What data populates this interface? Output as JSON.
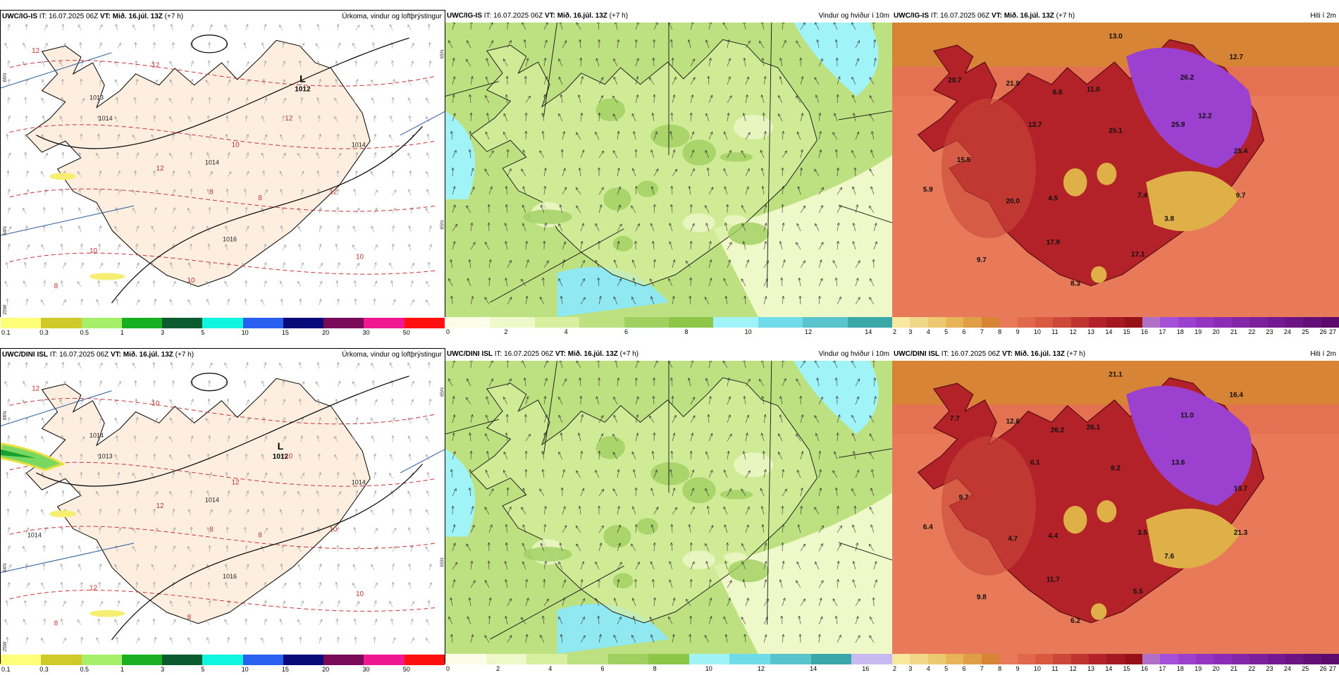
{
  "colors": {
    "land_pale": "#fdeee0",
    "sea_white": "#ffffff",
    "isobar": "#000000",
    "temp_contour": "#c8323c",
    "graticule": "#2a5a9a"
  },
  "scale_precip": {
    "colors": [
      "#ffff7a",
      "#cfc92a",
      "#a6ef6a",
      "#18b020",
      "#0a5c30",
      "#10f5e0",
      "#2a60f0",
      "#0a0a7a",
      "#7a0a5a",
      "#f01890",
      "#ff1010"
    ],
    "labels": [
      "0.1",
      "0.3",
      "0.5",
      "1",
      "3",
      "5",
      "10",
      "15",
      "20",
      "30",
      "50"
    ]
  },
  "scale_wind_top": {
    "colors": [
      "#fbfde8",
      "#eef8c8",
      "#d9efa0",
      "#bde080",
      "#9fd060",
      "#8ec64a",
      "#a0f4f8",
      "#70dcea",
      "#5ac4cc",
      "#3aa8a8"
    ],
    "labels": [
      "0",
      "2",
      "4",
      "6",
      "8",
      "10",
      "12",
      "14"
    ]
  },
  "scale_wind_bottom": {
    "colors": [
      "#fbfde8",
      "#eef8c8",
      "#d9efa0",
      "#bde080",
      "#9fd060",
      "#8ec64a",
      "#a0f4f8",
      "#70dcea",
      "#5ac4cc",
      "#3aa8a8",
      "#c8b8f0"
    ],
    "labels": [
      "0",
      "2",
      "4",
      "6",
      "8",
      "10",
      "12",
      "14",
      "16"
    ]
  },
  "scale_temp": {
    "colors": [
      "#f8e8a0",
      "#f0d888",
      "#ecc870",
      "#e8b458",
      "#e09e46",
      "#d88436",
      "#e87a5a",
      "#e2684c",
      "#d85840",
      "#cc4838",
      "#c03430",
      "#b22228",
      "#a41820",
      "#961018",
      "#b070c8",
      "#a450d8",
      "#9c40d0",
      "#9434c0",
      "#8c2cb4",
      "#8426a8",
      "#7c209c",
      "#741a90",
      "#6c1484",
      "#640e78",
      "#5c0a6c"
    ],
    "labels": [
      "2",
      "3",
      "4",
      "5",
      "6",
      "7",
      "8",
      "9",
      "10",
      "11",
      "12",
      "13",
      "14",
      "15",
      "16",
      "17",
      "18",
      "19",
      "20",
      "21",
      "22",
      "23",
      "24",
      "25",
      "26",
      "27"
    ]
  },
  "panels": [
    {
      "id": "igis-precip",
      "model": "UWC/IG-IS",
      "it_label": "IT:",
      "it_value": "16.07.2025 06Z",
      "vt_label": "VT:",
      "vt_value": "Mið. 16.júl. 13Z",
      "lead": "(+7 h)",
      "title": "Úrkoma, vindur og loftþrýstingur",
      "low_letter": "L",
      "low_value": "1012",
      "isobar_labels": [
        "1013",
        "1014",
        "1014",
        "1014",
        "1016"
      ],
      "contour_labels": [
        "12",
        "12",
        "12",
        "12",
        "10",
        "10",
        "10",
        "8",
        "8",
        "8",
        "10",
        "12"
      ],
      "grid_labels": [
        "66N",
        "64N",
        "25W",
        "65N",
        "65N"
      ]
    },
    {
      "id": "igis-wind",
      "model": "UWC/IG-IS",
      "it_label": "IT:",
      "it_value": "16.07.2025 06Z",
      "vt_label": "VT:",
      "vt_value": "Mið. 16.júl. 13Z",
      "lead": "(+7 h)",
      "title": "Vindur og hviður í 10m"
    },
    {
      "id": "igis-temp",
      "model": "UWC/IG-IS",
      "it_label": "IT:",
      "it_value": "16.07.2025 06Z",
      "vt_label": "VT:",
      "vt_value": "Mið. 16.júl. 13Z",
      "lead": "(+7 h)",
      "title": "Hiti í 2m",
      "temp_values": [
        "13.0",
        "20.7",
        "21.9",
        "6.6",
        "11.0",
        "26.2",
        "12.7",
        "25.9",
        "25.4",
        "9.7",
        "12.7",
        "25.1",
        "15.5",
        "5.9",
        "20.0",
        "4.5",
        "7.4",
        "3.8",
        "17.9",
        "9.7",
        "17.1",
        "8.3",
        "12.2"
      ]
    },
    {
      "id": "dini-precip",
      "model": "UWC/DINI ISL",
      "it_label": "IT:",
      "it_value": "16.07.2025 06Z",
      "vt_label": "VT:",
      "vt_value": "Mið. 16.júl. 13Z",
      "lead": "(+7 h)",
      "title": "Úrkoma, vindur og loftþrýstingur",
      "low_letter": "L",
      "low_value": "1012",
      "isobar_labels": [
        "1014",
        "1013",
        "1014",
        "1014",
        "1016",
        "1014"
      ],
      "contour_labels": [
        "12",
        "10",
        "10",
        "10",
        "12",
        "12",
        "8",
        "8",
        "8",
        "8",
        "10",
        "12"
      ],
      "grid_labels": [
        "66N",
        "64N",
        "25W",
        "65N",
        "65N"
      ]
    },
    {
      "id": "dini-wind",
      "model": "UWC/DINI ISL",
      "it_label": "IT:",
      "it_value": "16.07.2025 06Z",
      "vt_label": "VT:",
      "vt_value": "Mið. 16.júl. 13Z",
      "lead": "(+7 h)",
      "title": "Vindur og hviður í 10m"
    },
    {
      "id": "dini-temp",
      "model": "UWC/DINI ISL",
      "it_label": "IT:",
      "it_value": "16.07.2025 06Z",
      "vt_label": "VT:",
      "vt_value": "Mið. 16.júl. 13Z",
      "lead": "(+7 h)",
      "title": "Hiti í 2m",
      "temp_values": [
        "21.1",
        "7.7",
        "12.6",
        "26.2",
        "26.1",
        "11.0",
        "16.4",
        "13.6",
        "10.7",
        "21.3",
        "6.1",
        "9.2",
        "9.7",
        "6.4",
        "4.7",
        "4.4",
        "3.5",
        "7.6",
        "11.7",
        "9.8",
        "5.5",
        "6.2"
      ]
    }
  ]
}
